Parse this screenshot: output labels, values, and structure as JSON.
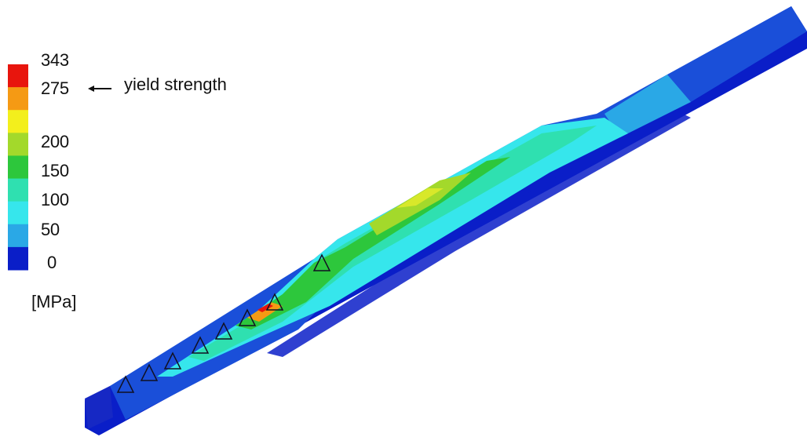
{
  "legend": {
    "unit": "[MPa]",
    "tick_labels": [
      "343",
      "275",
      "200",
      "150",
      "100",
      "50",
      "0"
    ],
    "band_colors": [
      "#e8150d",
      "#f59a14",
      "#f3ef1c",
      "#a3d92b",
      "#2dc73c",
      "#2fe0b0",
      "#36e6ec",
      "#2aa8e6",
      "#0a1ec8"
    ]
  },
  "annotation": {
    "text": "yield strength",
    "arrow_icon": "left-arrow-icon"
  },
  "contour_colors": {
    "zero": "#0a1ec8",
    "mid_blue": "#2aa8e6",
    "cyan": "#36e6ec",
    "teal": "#2fe0b0",
    "green": "#2dc73c",
    "yellow_green": "#a3d92b",
    "yellow": "#f3ef1c",
    "orange": "#f59a14",
    "red": "#e8150d"
  }
}
